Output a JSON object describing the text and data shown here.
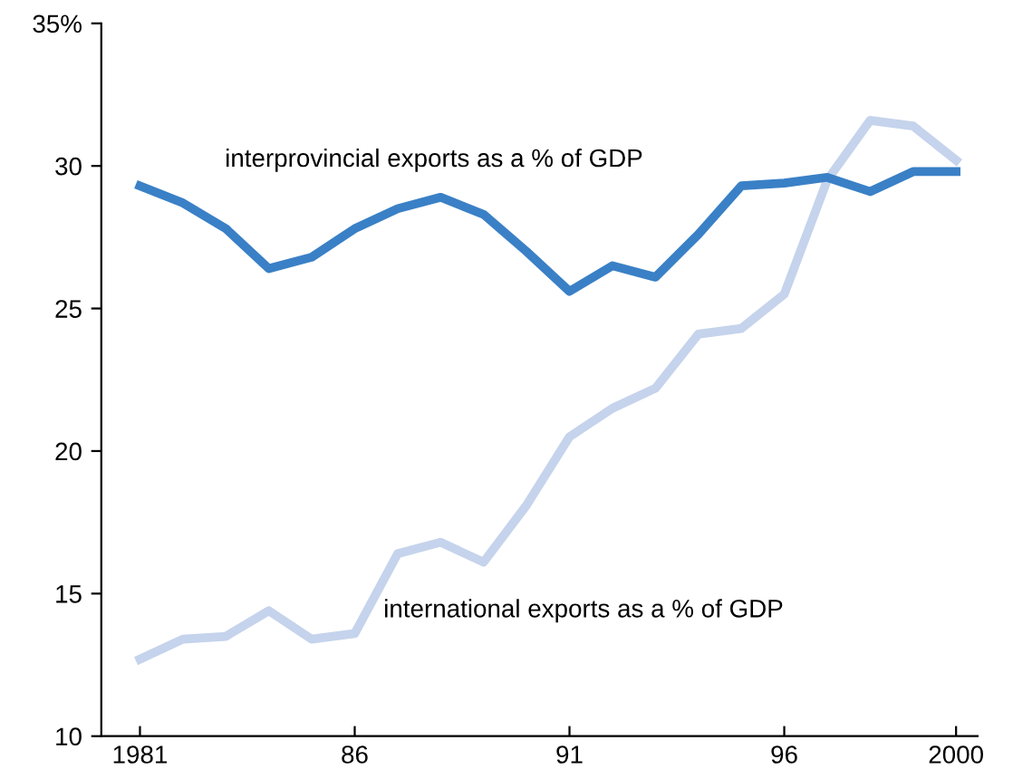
{
  "chart_data": {
    "type": "line",
    "x": [
      1981,
      1982,
      1983,
      1984,
      1985,
      1986,
      1987,
      1988,
      1989,
      1990,
      1991,
      1992,
      1993,
      1994,
      1995,
      1996,
      1997,
      1998,
      1999,
      2000
    ],
    "series": [
      {
        "name": "interprovincial exports as a % of GDP",
        "color": "#3a80c6",
        "values": [
          29.3,
          28.7,
          27.8,
          26.4,
          26.8,
          27.8,
          28.5,
          28.9,
          28.3,
          27.0,
          25.6,
          26.5,
          26.1,
          27.6,
          29.3,
          29.4,
          29.6,
          29.1,
          29.8,
          29.8
        ]
      },
      {
        "name": "international exports as a % of GDP",
        "color": "#c5d3ec",
        "values": [
          12.7,
          13.4,
          13.5,
          14.4,
          13.4,
          13.6,
          16.4,
          16.8,
          16.1,
          18.1,
          20.5,
          21.5,
          22.2,
          24.1,
          24.3,
          25.5,
          29.5,
          31.6,
          31.4,
          30.2
        ]
      }
    ],
    "xlim": [
      1980.1,
      2000.5
    ],
    "ylim": [
      10,
      35
    ],
    "xticks": [
      1981,
      {
        "value": 1986,
        "label": "86"
      },
      {
        "value": 1991,
        "label": "91"
      },
      {
        "value": 1996,
        "label": "96"
      },
      2000
    ],
    "yticks": [
      10,
      15,
      20,
      25,
      30,
      {
        "value": 35,
        "label": "35%"
      }
    ],
    "grid": false,
    "legend": false,
    "marker": "none",
    "line_style": "solid"
  }
}
